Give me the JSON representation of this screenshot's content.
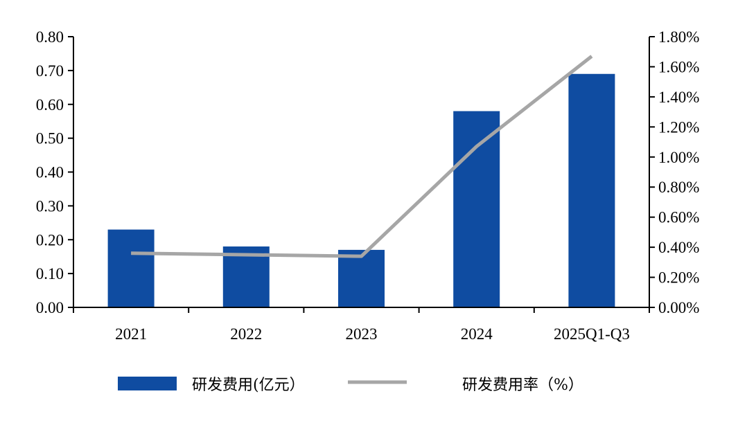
{
  "chart_data": {
    "type": "bar",
    "categories": [
      "2021",
      "2022",
      "2023",
      "2024",
      "2025Q1-Q3"
    ],
    "series": [
      {
        "name": "研发费用(亿元）",
        "type": "bar",
        "axis": "left",
        "color": "#0F4CA1",
        "values": [
          0.23,
          0.18,
          0.17,
          0.58,
          0.69
        ]
      },
      {
        "name": "研发费用率（%）",
        "type": "line",
        "axis": "right",
        "color": "#A6A6A6",
        "values": [
          0.0036,
          0.0035,
          0.0034,
          0.0107,
          0.0167
        ]
      }
    ],
    "left_axis": {
      "ylim": [
        0,
        0.8
      ],
      "ticks": [
        "0.00",
        "0.10",
        "0.20",
        "0.30",
        "0.40",
        "0.50",
        "0.60",
        "0.70",
        "0.80"
      ]
    },
    "right_axis": {
      "ylim": [
        0,
        0.018
      ],
      "ticks": [
        "0.00%",
        "0.20%",
        "0.40%",
        "0.60%",
        "0.80%",
        "1.00%",
        "1.20%",
        "1.40%",
        "1.60%",
        "1.80%"
      ]
    },
    "grid": false,
    "legend": "bottom"
  }
}
